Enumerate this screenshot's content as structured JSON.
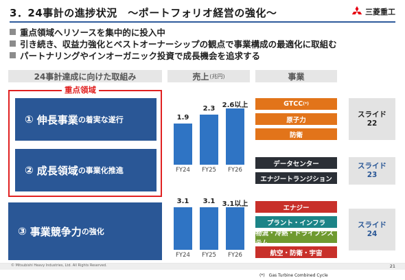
{
  "header": {
    "title": "3．24事計の進捗状況　～ポートフォリオ経営の強化～",
    "logo_text": "三菱重工",
    "logo_icon": "three-diamonds-icon",
    "accent": "#2a5796"
  },
  "bullets": [
    "重点領域へリソースを集中的に投入中",
    "引き続き、収益力強化とベストオーナーシップの観点で事業構成の最適化に取組む",
    "パートナリングやインオーガニック投資で成長機会を追求する"
  ],
  "columns": {
    "initiatives": "24事計達成に向けた取組み",
    "sales": "売上",
    "sales_unit": "(兆円)",
    "business": "事業"
  },
  "focus_label": "重点領域",
  "initiatives": [
    {
      "big_a": "①",
      "big_b": "伸長事業",
      "small": "の着実な遂行"
    },
    {
      "big_a": "②",
      "big_b": "成長領域",
      "small": "の事業化推進"
    },
    {
      "big_a": "③",
      "big_b": "事業競争力",
      "small": "の強化"
    }
  ],
  "chart_data": [
    {
      "type": "bar",
      "categories": [
        "FY24",
        "FY25",
        "FY26"
      ],
      "values": [
        1.9,
        2.3,
        2.6
      ],
      "data_labels": [
        "1.9",
        "2.3",
        "2.6以上"
      ],
      "ylim": [
        0,
        3.0
      ],
      "bar_color": "#2f74c4"
    },
    {
      "type": "bar",
      "categories": [
        "FY24",
        "FY25",
        "FY26"
      ],
      "values": [
        3.1,
        3.1,
        3.1
      ],
      "data_labels": [
        "3.1",
        "3.1",
        "3.1以上"
      ],
      "ylim": [
        0,
        4.0
      ],
      "bar_color": "#2f74c4"
    }
  ],
  "businesses": {
    "group1": [
      "GTCC",
      "原子力",
      "防衛"
    ],
    "gtcc_mark": "(*)",
    "group2": [
      "データセンター",
      "エナジートランジション"
    ],
    "group3": [
      "エナジー",
      "プラント・インフラ",
      "物流・冷熱・ドライブシステム",
      "航空・防衛・宇宙"
    ]
  },
  "slides": [
    {
      "label": "スライド",
      "number": "22"
    },
    {
      "label": "スライド",
      "number": "23"
    },
    {
      "label": "スライド",
      "number": "24"
    }
  ],
  "footer": {
    "copyright": "© Mitsubishi Heavy Industries, Ltd.  All Rights Reserved.",
    "page": "21",
    "footnote": "(*)　Gas Turbine Combined Cycle"
  }
}
